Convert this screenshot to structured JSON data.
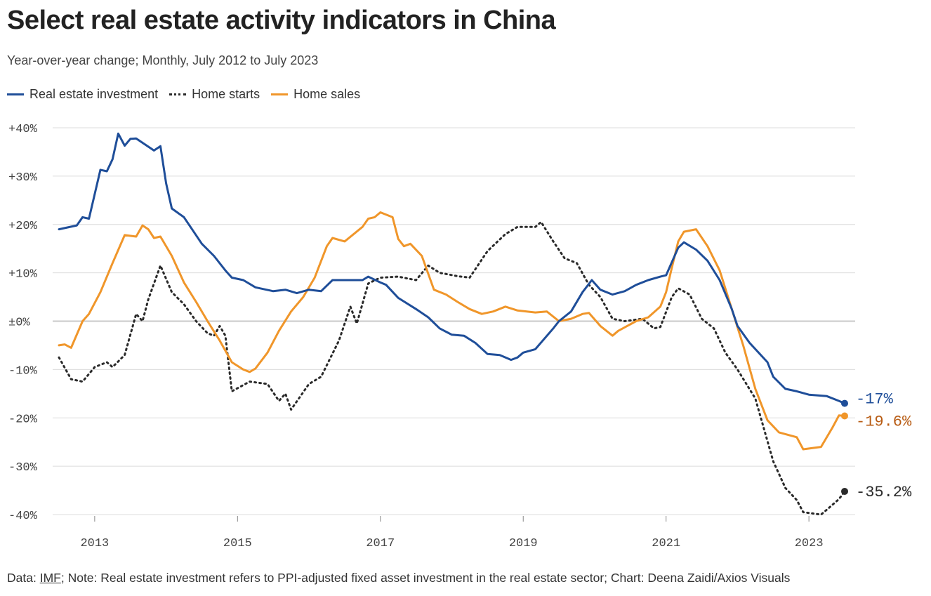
{
  "title": "Select real estate activity indicators in China",
  "subtitle": "Year-over-year change; Monthly, July 2012 to July 2023",
  "legend": {
    "investment": "Real estate investment",
    "starts": "Home starts",
    "sales": "Home sales"
  },
  "footer": {
    "data_prefix": "Data: ",
    "source": "IMF",
    "rest": "; Note: Real estate investment refers to PPI-adjusted fixed asset investment in the real estate sector; Chart: Deena Zaidi/Axios Visuals"
  },
  "colors": {
    "investment": "#1f4e99",
    "starts": "#2a2a2a",
    "sales": "#f0962a",
    "sales_label": "#b85c14",
    "grid": "#dcdcdc",
    "zero": "#c8c8c8",
    "tick": "#444444"
  },
  "chart_data": {
    "type": "line",
    "title": "Select real estate activity indicators in China",
    "xlabel": "",
    "ylabel": "",
    "xlim": [
      2012.5,
      2023.5
    ],
    "ylim": [
      -40,
      40
    ],
    "y_ticks": [
      40,
      30,
      20,
      10,
      0,
      -10,
      -20,
      -30,
      -40
    ],
    "y_tick_labels": [
      "+40%",
      "+30%",
      "+20%",
      "+10%",
      "±0%",
      "-10%",
      "-20%",
      "-30%",
      "-40%"
    ],
    "x_ticks": [
      2013,
      2015,
      2017,
      2019,
      2021,
      2023
    ],
    "x_tick_labels": [
      "2013",
      "2015",
      "2017",
      "2019",
      "2021",
      "2023"
    ],
    "series": [
      {
        "name": "Real estate investment",
        "style": "solid",
        "end_label": "-17%",
        "points": [
          [
            2012.5,
            19
          ],
          [
            2012.75,
            19.8
          ],
          [
            2012.83,
            21.5
          ],
          [
            2012.92,
            21.2
          ],
          [
            2013.08,
            31.3
          ],
          [
            2013.17,
            31
          ],
          [
            2013.25,
            33.5
          ],
          [
            2013.33,
            38.8
          ],
          [
            2013.42,
            36.3
          ],
          [
            2013.5,
            37.7
          ],
          [
            2013.58,
            37.8
          ],
          [
            2013.83,
            35.3
          ],
          [
            2013.92,
            36.2
          ],
          [
            2014.0,
            28.5
          ],
          [
            2014.08,
            23.3
          ],
          [
            2014.25,
            21.5
          ],
          [
            2014.5,
            16
          ],
          [
            2014.67,
            13.5
          ],
          [
            2014.83,
            10.5
          ],
          [
            2014.92,
            9
          ],
          [
            2015.08,
            8.5
          ],
          [
            2015.25,
            7
          ],
          [
            2015.5,
            6.2
          ],
          [
            2015.67,
            6.5
          ],
          [
            2015.83,
            5.8
          ],
          [
            2016.0,
            6.5
          ],
          [
            2016.17,
            6.2
          ],
          [
            2016.33,
            8.5
          ],
          [
            2016.5,
            8.5
          ],
          [
            2016.75,
            8.5
          ],
          [
            2016.83,
            9.2
          ],
          [
            2017.0,
            8
          ],
          [
            2017.08,
            7.5
          ],
          [
            2017.25,
            4.8
          ],
          [
            2017.5,
            2.5
          ],
          [
            2017.67,
            0.8
          ],
          [
            2017.83,
            -1.5
          ],
          [
            2018.0,
            -2.8
          ],
          [
            2018.17,
            -3
          ],
          [
            2018.33,
            -4.5
          ],
          [
            2018.5,
            -6.8
          ],
          [
            2018.67,
            -7
          ],
          [
            2018.83,
            -8
          ],
          [
            2018.92,
            -7.5
          ],
          [
            2019.0,
            -6.5
          ],
          [
            2019.17,
            -5.8
          ],
          [
            2019.42,
            -1.5
          ],
          [
            2019.5,
            0
          ],
          [
            2019.67,
            2
          ],
          [
            2019.83,
            6
          ],
          [
            2019.96,
            8.5
          ],
          [
            2020.08,
            6.5
          ],
          [
            2020.25,
            5.5
          ],
          [
            2020.42,
            6.2
          ],
          [
            2020.58,
            7.5
          ],
          [
            2020.75,
            8.5
          ],
          [
            2020.92,
            9.2
          ],
          [
            2021.0,
            9.5
          ],
          [
            2021.17,
            15.2
          ],
          [
            2021.25,
            16.3
          ],
          [
            2021.42,
            14.8
          ],
          [
            2021.58,
            12.5
          ],
          [
            2021.75,
            8.5
          ],
          [
            2021.92,
            2.5
          ],
          [
            2022.0,
            -1
          ],
          [
            2022.17,
            -4.5
          ],
          [
            2022.42,
            -8.5
          ],
          [
            2022.5,
            -11.5
          ],
          [
            2022.67,
            -14
          ],
          [
            2022.83,
            -14.5
          ],
          [
            2023.0,
            -15.2
          ],
          [
            2023.25,
            -15.5
          ],
          [
            2023.42,
            -16.5
          ],
          [
            2023.5,
            -17
          ]
        ]
      },
      {
        "name": "Home starts",
        "style": "dotted",
        "end_label": "-35.2%",
        "points": [
          [
            2012.5,
            -7.5
          ],
          [
            2012.67,
            -12
          ],
          [
            2012.83,
            -12.5
          ],
          [
            2013.0,
            -9.5
          ],
          [
            2013.17,
            -8.5
          ],
          [
            2013.25,
            -9.5
          ],
          [
            2013.42,
            -7
          ],
          [
            2013.58,
            1.5
          ],
          [
            2013.67,
            0
          ],
          [
            2013.75,
            4.5
          ],
          [
            2013.92,
            11.5
          ],
          [
            2014.08,
            6
          ],
          [
            2014.25,
            3.5
          ],
          [
            2014.42,
            0
          ],
          [
            2014.58,
            -2.5
          ],
          [
            2014.67,
            -3
          ],
          [
            2014.75,
            -1
          ],
          [
            2014.83,
            -3
          ],
          [
            2014.92,
            -14.5
          ],
          [
            2015.17,
            -12.5
          ],
          [
            2015.42,
            -13
          ],
          [
            2015.58,
            -16.5
          ],
          [
            2015.67,
            -15
          ],
          [
            2015.75,
            -18.3
          ],
          [
            2016.0,
            -13
          ],
          [
            2016.17,
            -11.5
          ],
          [
            2016.42,
            -4
          ],
          [
            2016.58,
            3
          ],
          [
            2016.67,
            -0.5
          ],
          [
            2016.83,
            7.8
          ],
          [
            2017.0,
            9
          ],
          [
            2017.25,
            9.2
          ],
          [
            2017.5,
            8.5
          ],
          [
            2017.67,
            11.5
          ],
          [
            2017.83,
            10
          ],
          [
            2018.08,
            9.3
          ],
          [
            2018.25,
            9
          ],
          [
            2018.5,
            14.5
          ],
          [
            2018.75,
            18
          ],
          [
            2018.92,
            19.5
          ],
          [
            2019.17,
            19.5
          ],
          [
            2019.25,
            20.5
          ],
          [
            2019.42,
            16.5
          ],
          [
            2019.58,
            13
          ],
          [
            2019.75,
            12
          ],
          [
            2019.92,
            7.5
          ],
          [
            2020.08,
            5
          ],
          [
            2020.25,
            0.5
          ],
          [
            2020.42,
            0
          ],
          [
            2020.67,
            0.5
          ],
          [
            2020.83,
            -1.5
          ],
          [
            2020.92,
            -1.2
          ],
          [
            2021.08,
            5
          ],
          [
            2021.17,
            6.8
          ],
          [
            2021.33,
            5.5
          ],
          [
            2021.5,
            0.5
          ],
          [
            2021.67,
            -1.5
          ],
          [
            2021.83,
            -6.5
          ],
          [
            2022.0,
            -10
          ],
          [
            2022.25,
            -16
          ],
          [
            2022.5,
            -29
          ],
          [
            2022.67,
            -34.5
          ],
          [
            2022.83,
            -37
          ],
          [
            2022.92,
            -39.5
          ],
          [
            2023.17,
            -40
          ],
          [
            2023.25,
            -39
          ],
          [
            2023.42,
            -36.8
          ],
          [
            2023.5,
            -35.2
          ]
        ]
      },
      {
        "name": "Home sales",
        "style": "solid",
        "end_label": "-19.6%",
        "points": [
          [
            2012.5,
            -5
          ],
          [
            2012.58,
            -4.8
          ],
          [
            2012.67,
            -5.5
          ],
          [
            2012.83,
            0
          ],
          [
            2012.92,
            1.5
          ],
          [
            2013.08,
            6
          ],
          [
            2013.25,
            12
          ],
          [
            2013.42,
            17.8
          ],
          [
            2013.58,
            17.5
          ],
          [
            2013.67,
            19.8
          ],
          [
            2013.75,
            19
          ],
          [
            2013.83,
            17.2
          ],
          [
            2013.92,
            17.5
          ],
          [
            2014.08,
            13.5
          ],
          [
            2014.25,
            8
          ],
          [
            2014.42,
            4
          ],
          [
            2014.58,
            0
          ],
          [
            2014.75,
            -4
          ],
          [
            2014.92,
            -8.5
          ],
          [
            2015.08,
            -10
          ],
          [
            2015.17,
            -10.5
          ],
          [
            2015.25,
            -9.8
          ],
          [
            2015.42,
            -6.5
          ],
          [
            2015.58,
            -2
          ],
          [
            2015.75,
            2
          ],
          [
            2015.92,
            5
          ],
          [
            2016.08,
            9
          ],
          [
            2016.25,
            15.5
          ],
          [
            2016.33,
            17.2
          ],
          [
            2016.5,
            16.5
          ],
          [
            2016.75,
            19.5
          ],
          [
            2016.83,
            21.2
          ],
          [
            2016.92,
            21.5
          ],
          [
            2017.0,
            22.5
          ],
          [
            2017.17,
            21.5
          ],
          [
            2017.25,
            17
          ],
          [
            2017.33,
            15.5
          ],
          [
            2017.42,
            16
          ],
          [
            2017.58,
            13.5
          ],
          [
            2017.75,
            6.5
          ],
          [
            2017.92,
            5.5
          ],
          [
            2018.08,
            4
          ],
          [
            2018.25,
            2.5
          ],
          [
            2018.42,
            1.5
          ],
          [
            2018.58,
            2
          ],
          [
            2018.75,
            3
          ],
          [
            2018.92,
            2.2
          ],
          [
            2019.17,
            1.8
          ],
          [
            2019.33,
            2
          ],
          [
            2019.5,
            0
          ],
          [
            2019.67,
            0.5
          ],
          [
            2019.83,
            1.5
          ],
          [
            2019.92,
            1.7
          ],
          [
            2020.08,
            -1
          ],
          [
            2020.25,
            -3
          ],
          [
            2020.33,
            -2
          ],
          [
            2020.58,
            0
          ],
          [
            2020.75,
            0.8
          ],
          [
            2020.92,
            3
          ],
          [
            2021.0,
            6
          ],
          [
            2021.08,
            11
          ],
          [
            2021.17,
            16.5
          ],
          [
            2021.25,
            18.5
          ],
          [
            2021.42,
            19
          ],
          [
            2021.58,
            15.5
          ],
          [
            2021.75,
            10.5
          ],
          [
            2021.92,
            2.5
          ],
          [
            2022.08,
            -5
          ],
          [
            2022.25,
            -14
          ],
          [
            2022.42,
            -20.5
          ],
          [
            2022.58,
            -23
          ],
          [
            2022.83,
            -24
          ],
          [
            2022.92,
            -26.5
          ],
          [
            2023.17,
            -26
          ],
          [
            2023.33,
            -22
          ],
          [
            2023.42,
            -19.5
          ],
          [
            2023.5,
            -19.6
          ]
        ]
      }
    ]
  }
}
